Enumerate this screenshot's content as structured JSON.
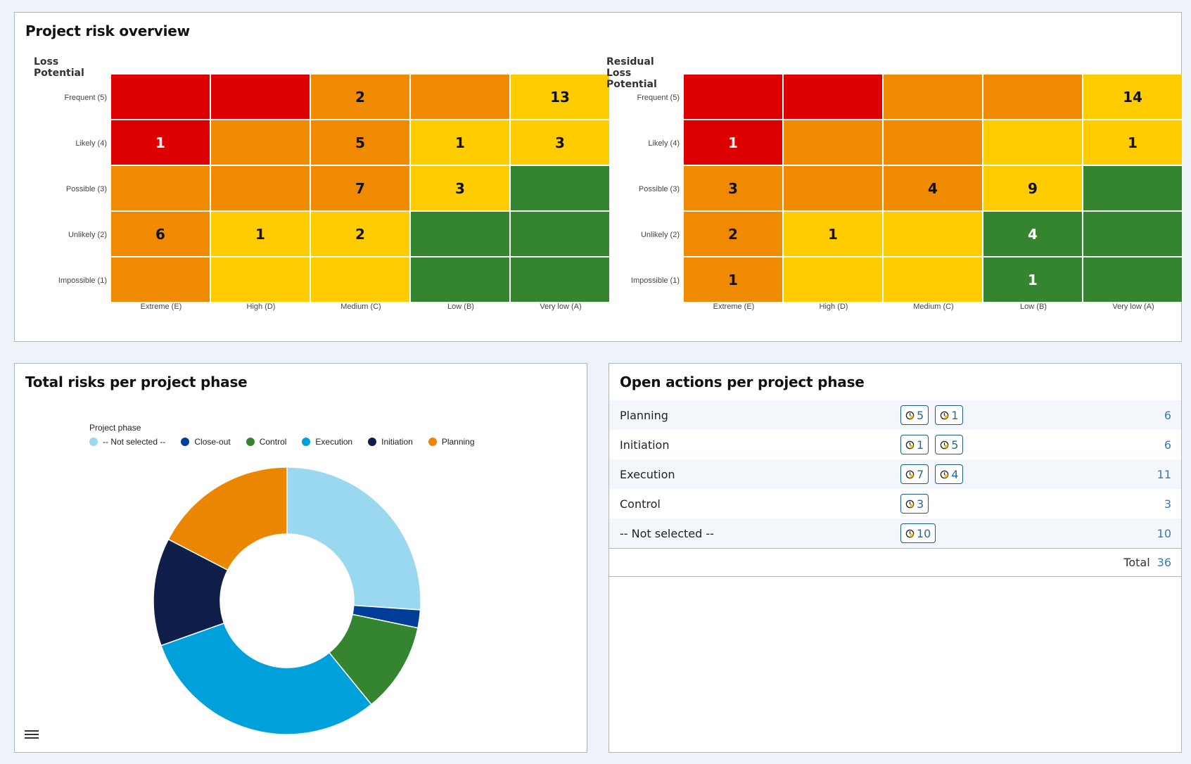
{
  "risk_panel": {
    "title": "Project risk overview",
    "loss": {
      "title": "Loss Potential",
      "rows": [
        [
          "red",
          "red",
          "orange",
          "orange",
          "yellow"
        ],
        [
          "red",
          "orange",
          "orange",
          "yellow",
          "yellow"
        ],
        [
          "orange",
          "orange",
          "orange",
          "yellow",
          "green"
        ],
        [
          "orange",
          "yellow",
          "yellow",
          "green",
          "green"
        ],
        [
          "orange",
          "yellow",
          "yellow",
          "green",
          "green"
        ]
      ],
      "values": [
        [
          "",
          "",
          "2",
          "",
          "13"
        ],
        [
          "1",
          "",
          "5",
          "1",
          "3"
        ],
        [
          "",
          "",
          "7",
          "3",
          ""
        ],
        [
          "6",
          "1",
          "2",
          "",
          ""
        ],
        [
          "",
          "",
          "",
          "",
          ""
        ]
      ]
    },
    "residual": {
      "title": "Residual Loss Potential",
      "rows": [
        [
          "red",
          "red",
          "orange",
          "orange",
          "yellow"
        ],
        [
          "red",
          "orange",
          "orange",
          "yellow",
          "yellow"
        ],
        [
          "orange",
          "orange",
          "orange",
          "yellow",
          "green"
        ],
        [
          "orange",
          "yellow",
          "yellow",
          "green",
          "green"
        ],
        [
          "orange",
          "yellow",
          "yellow",
          "green",
          "green"
        ]
      ],
      "values": [
        [
          "",
          "",
          "",
          "",
          "14"
        ],
        [
          "1",
          "",
          "",
          "",
          "1"
        ],
        [
          "3",
          "",
          "4",
          "9",
          ""
        ],
        [
          "2",
          "1",
          "",
          "4",
          ""
        ],
        [
          "1",
          "",
          "",
          "1",
          ""
        ]
      ]
    },
    "y_labels": [
      "Frequent (5)",
      "Likely (4)",
      "Possible (3)",
      "Unlikely (2)",
      "Impossible (1)"
    ],
    "x_labels": [
      "Extreme (E)",
      "High (D)",
      "Medium (C)",
      "Low (B)",
      "Very low (A)"
    ]
  },
  "phase_panel": {
    "title": "Total risks per project phase"
  },
  "chart_data": {
    "type": "pie",
    "title": "Total risks per project phase",
    "legend_title": "Project phase",
    "legend_position": "top",
    "donut": true,
    "categories": [
      "-- Not selected --",
      "Close-out",
      "Control",
      "Execution",
      "Initiation",
      "Planning"
    ],
    "values": [
      12,
      1,
      5,
      14,
      6,
      8
    ],
    "colors": [
      "#99d8ef",
      "#003d99",
      "#348430",
      "#00a0da",
      "#0f1f4a",
      "#ea8600"
    ]
  },
  "actions_panel": {
    "title": "Open actions per project phase",
    "rows": [
      {
        "label": "Planning",
        "badges": [
          "5",
          "1"
        ],
        "count": "6"
      },
      {
        "label": "Initiation",
        "badges": [
          "1",
          "5"
        ],
        "count": "6"
      },
      {
        "label": "Execution",
        "badges": [
          "7",
          "4"
        ],
        "count": "11"
      },
      {
        "label": "Control",
        "badges": [
          "3"
        ],
        "count": "3"
      },
      {
        "label": "-- Not selected --",
        "badges": [
          "10"
        ],
        "count": "10"
      }
    ],
    "total_label": "Total",
    "total_value": "36"
  }
}
